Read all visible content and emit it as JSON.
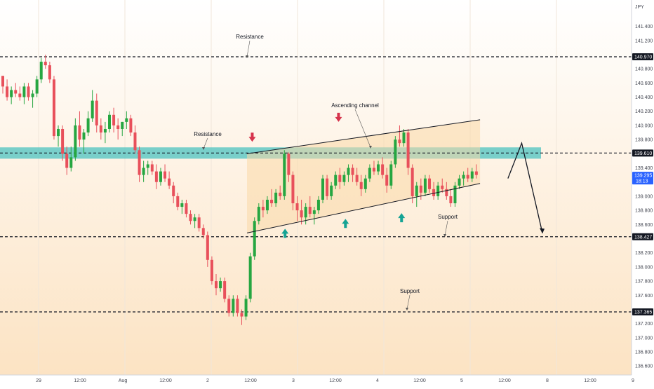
{
  "chart_data": {
    "type": "candlestick",
    "currency": "JPY",
    "y_ticks": [
      "141.400",
      "141.200",
      "140.800",
      "140.600",
      "140.400",
      "140.200",
      "140.000",
      "139.800",
      "139.400",
      "139.200",
      "139.000",
      "138.800",
      "138.600",
      "138.200",
      "138.000",
      "137.800",
      "137.600",
      "137.200",
      "137.000",
      "136.800",
      "136.600"
    ],
    "x_ticks": [
      "29",
      "12:00",
      "Aug",
      "12:00",
      "2",
      "12:00",
      "3",
      "12:00",
      "4",
      "12:00",
      "5",
      "12:00",
      "8",
      "12:00",
      "9"
    ],
    "price_tags": [
      {
        "value": "140.970",
        "style": "dark"
      },
      {
        "value": "139.610",
        "style": "dark"
      },
      {
        "value": "139.295",
        "style": "blue",
        "sub": "18:13"
      },
      {
        "value": "138.427",
        "style": "dark"
      },
      {
        "value": "137.365",
        "style": "dark"
      }
    ],
    "levels": [
      140.97,
      139.61,
      138.427,
      137.365
    ],
    "resistance_zone": [
      139.53,
      139.69
    ],
    "channel": {
      "upper": [
        {
          "time": 3.0,
          "price": 139.6
        },
        {
          "time": 5.7,
          "price": 140.08
        }
      ],
      "lower": [
        {
          "time": 3.0,
          "price": 138.48
        },
        {
          "time": 5.7,
          "price": 139.18
        }
      ]
    },
    "annotations": [
      "Resistance",
      "Resistance",
      "Ascending channel",
      "Support",
      "Support"
    ],
    "signals": [
      {
        "type": "down",
        "time": 3.02,
        "price": 139.74
      },
      {
        "type": "down",
        "time": 4.02,
        "price": 140.02
      },
      {
        "type": "up",
        "time": 3.4,
        "price": 138.56
      },
      {
        "type": "up",
        "time": 4.1,
        "price": 138.7
      },
      {
        "type": "up",
        "time": 4.75,
        "price": 138.78
      }
    ],
    "projection": [
      {
        "time": 5.6,
        "price": 139.25
      },
      {
        "time": 5.76,
        "price": 139.75
      },
      {
        "time": 6.0,
        "price": 138.48
      }
    ],
    "candles": [
      [
        140.7,
        140.7,
        140.45,
        140.55
      ],
      [
        140.55,
        140.65,
        140.35,
        140.4
      ],
      [
        140.4,
        140.55,
        140.3,
        140.5
      ],
      [
        140.5,
        140.6,
        140.4,
        140.45
      ],
      [
        140.45,
        140.55,
        140.35,
        140.4
      ],
      [
        140.4,
        140.6,
        140.3,
        140.55
      ],
      [
        140.55,
        140.6,
        140.35,
        140.4
      ],
      [
        140.4,
        140.5,
        140.25,
        140.45
      ],
      [
        140.45,
        140.7,
        140.4,
        140.65
      ],
      [
        140.65,
        140.95,
        140.6,
        140.9
      ],
      [
        140.9,
        141.0,
        140.8,
        140.85
      ],
      [
        140.85,
        140.9,
        140.6,
        140.65
      ],
      [
        140.65,
        140.7,
        139.8,
        139.85
      ],
      [
        139.85,
        140.0,
        139.7,
        139.95
      ],
      [
        139.95,
        140.0,
        139.5,
        139.6
      ],
      [
        139.6,
        139.7,
        139.3,
        139.4
      ],
      [
        139.4,
        139.7,
        139.35,
        139.55
      ],
      [
        139.55,
        140.1,
        139.5,
        140.0
      ],
      [
        140.0,
        140.2,
        139.7,
        139.8
      ],
      [
        139.8,
        139.95,
        139.6,
        139.9
      ],
      [
        139.9,
        140.2,
        139.85,
        140.1
      ],
      [
        140.1,
        140.5,
        140.05,
        140.35
      ],
      [
        140.35,
        140.45,
        139.9,
        140.0
      ],
      [
        140.0,
        140.1,
        139.8,
        139.9
      ],
      [
        139.9,
        140.05,
        139.75,
        139.95
      ],
      [
        139.95,
        140.2,
        139.9,
        140.15
      ],
      [
        140.15,
        140.25,
        139.9,
        140.0
      ],
      [
        140.0,
        140.1,
        139.8,
        139.95
      ],
      [
        139.95,
        140.05,
        139.85,
        140.05
      ],
      [
        140.05,
        140.2,
        139.95,
        140.1
      ],
      [
        140.1,
        140.15,
        139.85,
        139.9
      ],
      [
        139.9,
        140.0,
        139.6,
        139.65
      ],
      [
        139.65,
        139.7,
        139.2,
        139.3
      ],
      [
        139.3,
        139.5,
        139.2,
        139.4
      ],
      [
        139.4,
        139.5,
        139.3,
        139.45
      ],
      [
        139.45,
        139.5,
        139.3,
        139.35
      ],
      [
        139.35,
        139.45,
        139.1,
        139.2
      ],
      [
        139.2,
        139.4,
        139.15,
        139.35
      ],
      [
        139.35,
        139.45,
        139.2,
        139.25
      ],
      [
        139.25,
        139.35,
        139.1,
        139.15
      ],
      [
        139.15,
        139.2,
        138.9,
        139.0
      ],
      [
        139.0,
        139.05,
        138.8,
        138.85
      ],
      [
        138.85,
        138.95,
        138.75,
        138.9
      ],
      [
        138.9,
        138.95,
        138.7,
        138.75
      ],
      [
        138.75,
        138.8,
        138.6,
        138.65
      ],
      [
        138.65,
        138.75,
        138.55,
        138.7
      ],
      [
        138.7,
        138.75,
        138.5,
        138.55
      ],
      [
        138.55,
        138.6,
        138.4,
        138.45
      ],
      [
        138.45,
        138.5,
        138.0,
        138.1
      ],
      [
        138.1,
        138.15,
        137.75,
        137.8
      ],
      [
        137.8,
        137.9,
        137.6,
        137.7
      ],
      [
        137.7,
        137.85,
        137.65,
        137.8
      ],
      [
        137.8,
        137.85,
        137.5,
        137.55
      ],
      [
        137.55,
        137.6,
        137.3,
        137.35
      ],
      [
        137.35,
        137.6,
        137.3,
        137.55
      ],
      [
        137.55,
        137.6,
        137.3,
        137.35
      ],
      [
        137.35,
        137.4,
        137.18,
        137.3
      ],
      [
        137.3,
        137.6,
        137.25,
        137.55
      ],
      [
        137.55,
        138.2,
        137.5,
        138.15
      ],
      [
        138.15,
        138.7,
        138.1,
        138.65
      ],
      [
        138.65,
        138.9,
        138.6,
        138.85
      ],
      [
        138.85,
        138.95,
        138.7,
        138.8
      ],
      [
        138.8,
        139.0,
        138.75,
        138.95
      ],
      [
        138.95,
        139.1,
        138.85,
        138.9
      ],
      [
        138.9,
        139.1,
        138.85,
        139.05
      ],
      [
        139.05,
        139.15,
        138.95,
        139.0
      ],
      [
        139.0,
        139.65,
        138.95,
        139.6
      ],
      [
        139.6,
        139.62,
        139.2,
        139.3
      ],
      [
        139.3,
        139.35,
        138.8,
        138.9
      ],
      [
        138.9,
        139.0,
        138.65,
        138.8
      ],
      [
        138.8,
        138.95,
        138.6,
        138.7
      ],
      [
        138.7,
        138.9,
        138.6,
        138.85
      ],
      [
        138.85,
        139.0,
        138.7,
        138.75
      ],
      [
        138.75,
        138.85,
        138.6,
        138.8
      ],
      [
        138.8,
        139.0,
        138.75,
        138.95
      ],
      [
        138.95,
        139.3,
        138.9,
        139.25
      ],
      [
        139.25,
        139.3,
        138.95,
        139.0
      ],
      [
        139.0,
        139.2,
        138.95,
        139.15
      ],
      [
        139.15,
        139.35,
        139.1,
        139.3
      ],
      [
        139.3,
        139.4,
        139.1,
        139.2
      ],
      [
        139.2,
        139.35,
        139.15,
        139.3
      ],
      [
        139.3,
        139.45,
        139.2,
        139.4
      ],
      [
        139.4,
        139.45,
        139.2,
        139.3
      ],
      [
        139.3,
        139.4,
        139.15,
        139.2
      ],
      [
        139.2,
        139.3,
        139.0,
        139.1
      ],
      [
        139.1,
        139.3,
        139.05,
        139.25
      ],
      [
        139.25,
        139.45,
        139.2,
        139.4
      ],
      [
        139.4,
        139.5,
        139.3,
        139.35
      ],
      [
        139.35,
        139.5,
        139.3,
        139.45
      ],
      [
        139.45,
        139.55,
        139.25,
        139.3
      ],
      [
        139.3,
        139.4,
        139.05,
        139.15
      ],
      [
        139.15,
        139.5,
        139.1,
        139.45
      ],
      [
        139.45,
        139.85,
        139.4,
        139.8
      ],
      [
        139.8,
        140.0,
        139.7,
        139.75
      ],
      [
        139.75,
        139.95,
        139.7,
        139.9
      ],
      [
        139.9,
        139.95,
        139.3,
        139.4
      ],
      [
        139.4,
        139.45,
        138.9,
        139.0
      ],
      [
        139.0,
        139.2,
        138.85,
        139.15
      ],
      [
        139.15,
        139.25,
        138.95,
        139.05
      ],
      [
        139.05,
        139.3,
        139.0,
        139.25
      ],
      [
        139.25,
        139.3,
        139.05,
        139.1
      ],
      [
        139.1,
        139.2,
        138.95,
        139.0
      ],
      [
        139.0,
        139.2,
        138.95,
        139.15
      ],
      [
        139.15,
        139.25,
        139.05,
        139.1
      ],
      [
        139.1,
        139.2,
        138.95,
        139.0
      ],
      [
        139.0,
        139.1,
        138.85,
        138.9
      ],
      [
        138.9,
        139.2,
        138.85,
        139.15
      ],
      [
        139.15,
        139.3,
        139.1,
        139.25
      ],
      [
        139.25,
        139.35,
        139.15,
        139.3
      ],
      [
        139.3,
        139.4,
        139.2,
        139.25
      ],
      [
        139.25,
        139.4,
        139.2,
        139.35
      ],
      [
        139.35,
        139.45,
        139.25,
        139.3
      ]
    ]
  }
}
